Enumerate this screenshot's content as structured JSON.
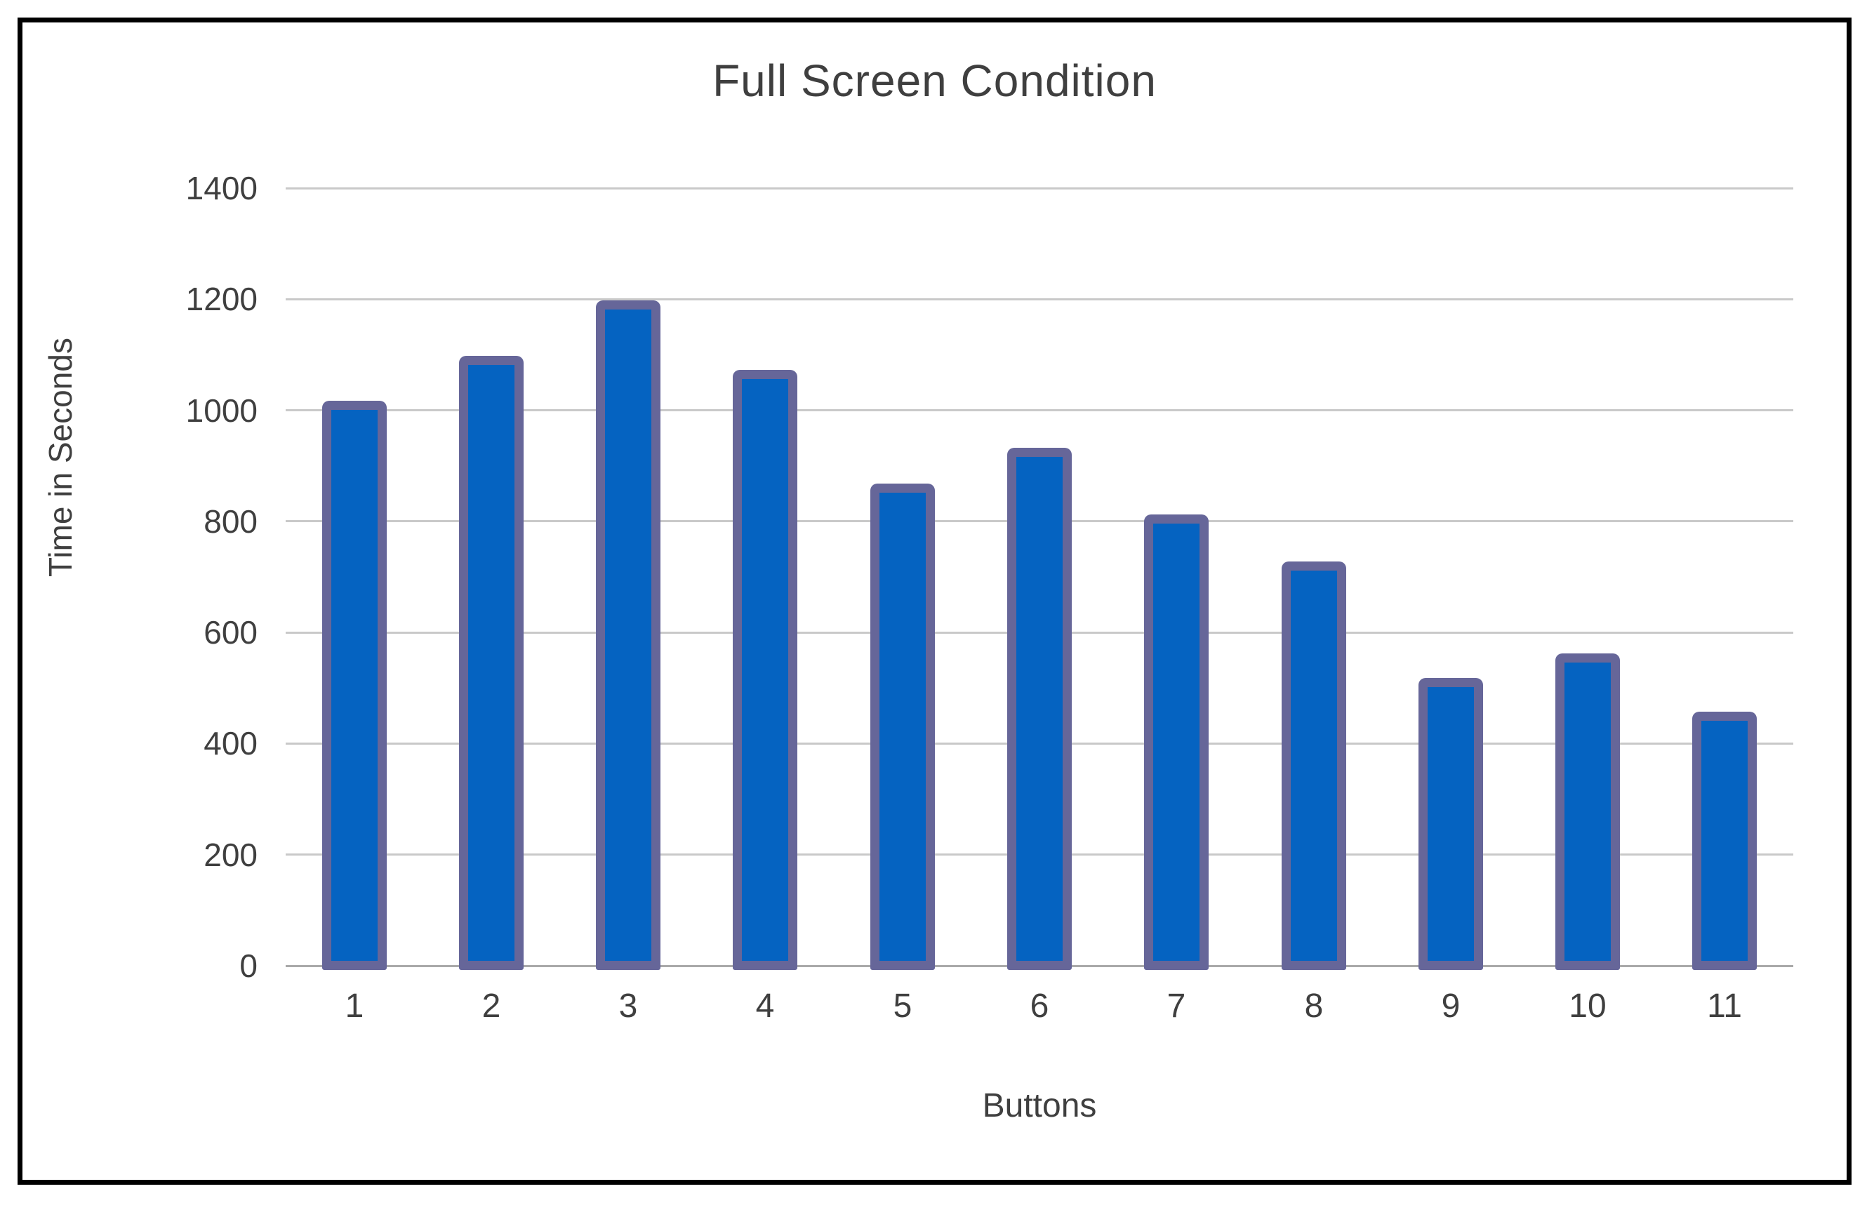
{
  "title": "Full Screen Condition",
  "colors": {
    "bar_fill": "#0563C1",
    "bar_border": "#666699",
    "gridline": "#C9C9C9",
    "axis_line": "#A9A9A9",
    "text": "#3F3F3F",
    "frame_border": "#000000",
    "background": "#FFFFFF"
  },
  "chart_data": {
    "type": "bar",
    "title": "Full Screen Condition",
    "xlabel": "Buttons",
    "ylabel": "Time in Seconds",
    "categories": [
      "1",
      "2",
      "3",
      "4",
      "5",
      "6",
      "7",
      "8",
      "9",
      "10",
      "11"
    ],
    "values": [
      1010,
      1090,
      1190,
      1065,
      860,
      925,
      805,
      720,
      510,
      555,
      450
    ],
    "ylim": [
      0,
      1400
    ],
    "yticks": [
      0,
      200,
      400,
      600,
      800,
      1000,
      1200,
      1400
    ],
    "grid": true,
    "legend": false,
    "series_name": ""
  }
}
